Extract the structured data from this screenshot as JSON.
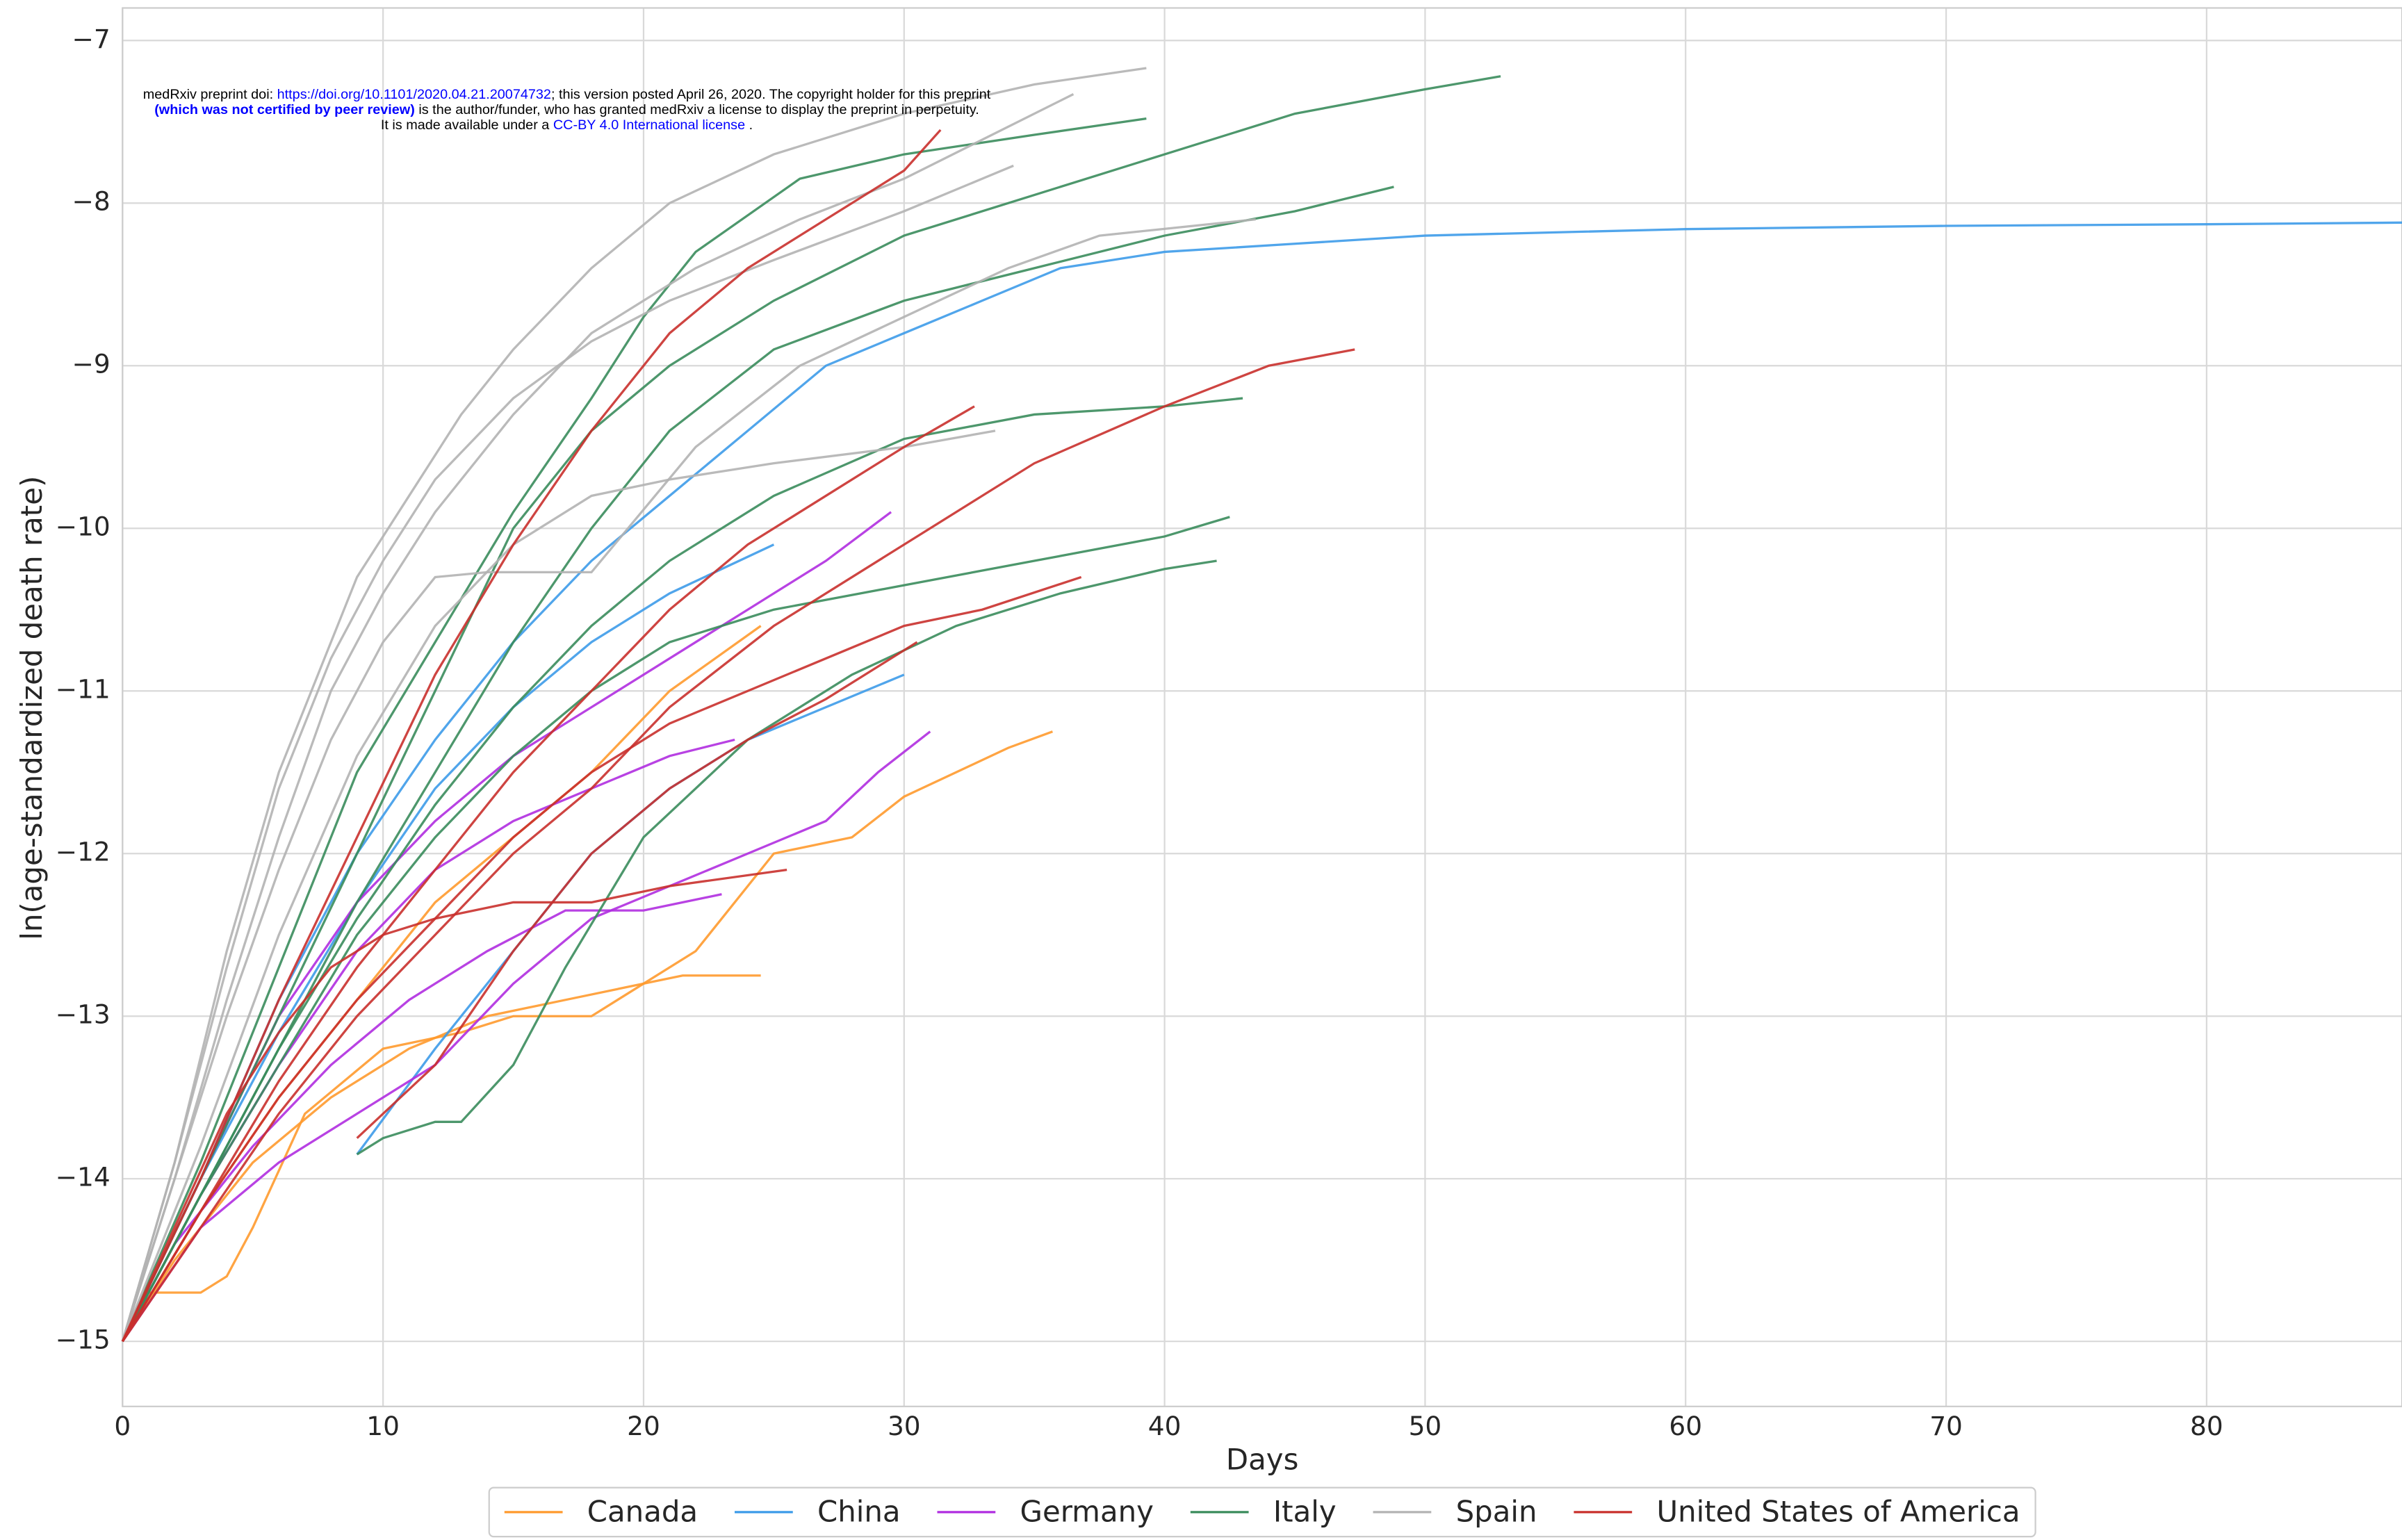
{
  "chart_data": {
    "type": "line",
    "xlabel": "Days",
    "ylabel": "ln(age-standardized death rate)",
    "xlim": [
      0,
      87.5
    ],
    "ylim": [
      -15.4,
      -6.8
    ],
    "xticks": [
      0,
      10,
      20,
      30,
      40,
      50,
      60,
      70,
      80
    ],
    "yticks": [
      {
        "value": -15,
        "label": "−15"
      },
      {
        "value": -14,
        "label": "−14"
      },
      {
        "value": -13,
        "label": "−13"
      },
      {
        "value": -12,
        "label": "−12"
      },
      {
        "value": -11,
        "label": "−11"
      },
      {
        "value": -10,
        "label": "−10"
      },
      {
        "value": -9,
        "label": "−9"
      },
      {
        "value": -8,
        "label": "−8"
      },
      {
        "value": -7,
        "label": "−7"
      }
    ],
    "grid": true,
    "legend": "bottom",
    "preprint_notice": [
      [
        {
          "text": "medRxiv preprint doi: "
        },
        {
          "text": "https://doi.org/10.1101/2020.04.21.20074732",
          "color": "#0000ff"
        },
        {
          "text": "; this version posted April 26, 2020. The copyright holder for this preprint"
        }
      ],
      [
        {
          "text": "(which was not certified by peer review)",
          "color": "#0000ff",
          "bold": true
        },
        {
          "text": " is the author/funder, who has granted medRxiv a license to display the preprint in perpetuity."
        }
      ],
      [
        {
          "text": "It is made available under a "
        },
        {
          "text": "CC-BY 4.0 International license",
          "color": "#0000ff"
        },
        {
          "text": " ."
        }
      ]
    ],
    "series": [
      {
        "name": "Canada",
        "color": "#ff9a2e",
        "curves": [
          {
            "x": [
              0,
              1,
              3,
              4,
              5,
              7,
              10,
              13,
              15,
              18,
              20,
              22,
              25,
              28,
              30,
              32,
              34,
              35.7
            ],
            "y": [
              -15,
              -14.7,
              -14.7,
              -14.6,
              -14.3,
              -13.6,
              -13.2,
              -13.1,
              -13.0,
              -13.0,
              -12.8,
              -12.6,
              -12.0,
              -11.9,
              -11.65,
              -11.5,
              -11.35,
              -11.25
            ]
          },
          {
            "x": [
              0,
              2,
              5,
              8,
              11,
              14,
              17,
              20,
              21.5,
              24.5
            ],
            "y": [
              -15,
              -14.5,
              -13.9,
              -13.5,
              -13.2,
              -13.0,
              -12.9,
              -12.8,
              -12.75,
              -12.75
            ]
          },
          {
            "x": [
              0,
              3,
              6,
              9,
              12,
              15,
              18,
              21,
              24.5
            ],
            "y": [
              -15,
              -14.2,
              -13.5,
              -12.9,
              -12.3,
              -11.9,
              -11.5,
              -11.0,
              -10.6
            ]
          }
        ]
      },
      {
        "name": "China",
        "color": "#3d9be9",
        "curves": [
          {
            "x": [
              0,
              3,
              6,
              9,
              12,
              15,
              18,
              21,
              24,
              27,
              30,
              33,
              36,
              40,
              45,
              50,
              60,
              70,
              80,
              87.5
            ],
            "y": [
              -15,
              -14.0,
              -12.9,
              -12.0,
              -11.3,
              -10.7,
              -10.2,
              -9.8,
              -9.4,
              -9.0,
              -8.8,
              -8.6,
              -8.4,
              -8.3,
              -8.25,
              -8.2,
              -8.16,
              -8.14,
              -8.13,
              -8.12
            ]
          },
          {
            "x": [
              9,
              12,
              15,
              18,
              21,
              24,
              27,
              30
            ],
            "y": [
              -13.85,
              -13.2,
              -12.6,
              -12.0,
              -11.6,
              -11.3,
              -11.1,
              -10.9
            ]
          },
          {
            "x": [
              0,
              3,
              6,
              9,
              12,
              15,
              18,
              21,
              25
            ],
            "y": [
              -15,
              -14,
              -13.1,
              -12.3,
              -11.6,
              -11.1,
              -10.7,
              -10.4,
              -10.1
            ]
          }
        ]
      },
      {
        "name": "Germany",
        "color": "#b02ee0",
        "curves": [
          {
            "x": [
              0,
              3,
              6,
              9,
              12,
              15,
              18,
              21,
              24,
              27,
              29,
              31
            ],
            "y": [
              -15,
              -14.3,
              -13.9,
              -13.6,
              -13.3,
              -12.8,
              -12.4,
              -12.2,
              -12.0,
              -11.8,
              -11.5,
              -11.25
            ]
          },
          {
            "x": [
              0,
              2,
              5,
              8,
              11,
              14,
              17,
              20,
              23
            ],
            "y": [
              -15,
              -14.4,
              -13.8,
              -13.3,
              -12.9,
              -12.6,
              -12.35,
              -12.35,
              -12.25
            ]
          },
          {
            "x": [
              0,
              3,
              6,
              9,
              12,
              15,
              18,
              21,
              24,
              27,
              29.5
            ],
            "y": [
              -15,
              -14.0,
              -13.0,
              -12.3,
              -11.8,
              -11.4,
              -11.1,
              -10.8,
              -10.5,
              -10.2,
              -9.9
            ]
          },
          {
            "x": [
              0,
              3,
              6,
              9,
              12,
              15,
              18,
              21,
              23.5
            ],
            "y": [
              -15,
              -14.1,
              -13.3,
              -12.6,
              -12.1,
              -11.8,
              -11.6,
              -11.4,
              -11.3
            ]
          }
        ]
      },
      {
        "name": "Italy",
        "color": "#3a8c5c",
        "curves": [
          {
            "x": [
              0,
              3,
              6,
              9,
              12,
              15,
              18,
              21,
              25,
              30,
              35,
              40,
              45,
              50,
              52.9
            ],
            "y": [
              -15,
              -14,
              -13,
              -12,
              -11,
              -10,
              -9.4,
              -9.0,
              -8.6,
              -8.2,
              -7.95,
              -7.7,
              -7.45,
              -7.3,
              -7.22
            ]
          },
          {
            "x": [
              9,
              10,
              12,
              13,
              15,
              17,
              20,
              24,
              28,
              32,
              36,
              40,
              42
            ],
            "y": [
              -13.85,
              -13.75,
              -13.65,
              -13.65,
              -13.3,
              -12.7,
              -11.9,
              -11.3,
              -10.9,
              -10.6,
              -10.4,
              -10.25,
              -10.2
            ]
          },
          {
            "x": [
              0,
              3,
              6,
              9,
              12,
              15,
              18,
              21,
              25,
              30,
              35,
              40,
              45,
              48.8
            ],
            "y": [
              -15,
              -14.1,
              -13.2,
              -12.3,
              -11.5,
              -10.7,
              -10.0,
              -9.4,
              -8.9,
              -8.6,
              -8.4,
              -8.2,
              -8.05,
              -7.9
            ]
          },
          {
            "x": [
              0,
              3,
              6,
              9,
              12,
              15,
              18,
              21,
              25,
              30,
              35,
              40,
              43
            ],
            "y": [
              -15,
              -14.1,
              -13.2,
              -12.4,
              -11.7,
              -11.1,
              -10.6,
              -10.2,
              -9.8,
              -9.45,
              -9.3,
              -9.25,
              -9.2
            ]
          },
          {
            "x": [
              0,
              3,
              6,
              9,
              12,
              15,
              18,
              21,
              25,
              30,
              35,
              40,
              42.5
            ],
            "y": [
              -15,
              -14.1,
              -13.3,
              -12.5,
              -11.9,
              -11.4,
              -11.0,
              -10.7,
              -10.5,
              -10.35,
              -10.2,
              -10.05,
              -9.93
            ]
          },
          {
            "x": [
              0,
              3,
              6,
              9,
              12,
              15,
              18,
              20,
              22,
              26,
              30,
              35,
              39.3
            ],
            "y": [
              -15,
              -13.9,
              -12.7,
              -11.5,
              -10.7,
              -9.9,
              -9.2,
              -8.7,
              -8.3,
              -7.85,
              -7.7,
              -7.58,
              -7.48
            ]
          }
        ]
      },
      {
        "name": "Spain",
        "color": "#b3b3b3",
        "curves": [
          {
            "x": [
              0,
              2,
              4,
              6,
              8,
              9,
              11,
              13,
              15,
              18,
              21,
              25,
              30,
              35,
              39.3
            ],
            "y": [
              -15,
              -13.9,
              -12.6,
              -11.5,
              -10.7,
              -10.3,
              -9.8,
              -9.3,
              -8.9,
              -8.4,
              -8.0,
              -7.7,
              -7.45,
              -7.27,
              -7.17
            ]
          },
          {
            "x": [
              0,
              2,
              4,
              6,
              8,
              10,
              12,
              15,
              18,
              22,
              26,
              30,
              36.5
            ],
            "y": [
              -15,
              -14,
              -12.9,
              -11.9,
              -11.0,
              -10.4,
              -9.9,
              -9.3,
              -8.8,
              -8.4,
              -8.1,
              -7.85,
              -7.33
            ]
          },
          {
            "x": [
              0,
              2,
              4,
              6,
              8,
              10,
              12,
              14,
              18,
              22,
              26,
              30,
              34,
              37.5,
              43.5
            ],
            "y": [
              -15,
              -14,
              -13,
              -12.1,
              -11.3,
              -10.7,
              -10.3,
              -10.27,
              -10.27,
              -9.5,
              -9.0,
              -8.7,
              -8.4,
              -8.2,
              -8.1
            ]
          },
          {
            "x": [
              0,
              3,
              6,
              9,
              12,
              15,
              18,
              21,
              25,
              30,
              33.5
            ],
            "y": [
              -15,
              -13.8,
              -12.5,
              -11.4,
              -10.6,
              -10.1,
              -9.8,
              -9.7,
              -9.6,
              -9.5,
              -9.4
            ]
          },
          {
            "x": [
              0,
              2,
              4,
              6,
              8,
              10,
              12,
              15,
              18,
              21,
              25,
              30,
              34.2
            ],
            "y": [
              -15,
              -13.9,
              -12.7,
              -11.6,
              -10.8,
              -10.2,
              -9.7,
              -9.2,
              -8.85,
              -8.6,
              -8.35,
              -8.05,
              -7.77
            ]
          }
        ]
      },
      {
        "name": "United States of America",
        "color": "#c9302c",
        "curves": [
          {
            "x": [
              0,
              3,
              6,
              9,
              12,
              15,
              18,
              21,
              24,
              27,
              30,
              31.4
            ],
            "y": [
              -15,
              -14,
              -12.9,
              -11.9,
              -10.9,
              -10.1,
              -9.4,
              -8.8,
              -8.4,
              -8.1,
              -7.8,
              -7.55
            ]
          },
          {
            "x": [
              0,
              3,
              6,
              9,
              12,
              15,
              18,
              21,
              25,
              30,
              35,
              40,
              44,
              47.3
            ],
            "y": [
              -15,
              -14.3,
              -13.6,
              -13,
              -12.5,
              -12,
              -11.6,
              -11.1,
              -10.6,
              -10.1,
              -9.6,
              -9.25,
              -9.0,
              -8.9
            ]
          },
          {
            "x": [
              0,
              3,
              6,
              9,
              12,
              15,
              18,
              21,
              24,
              27,
              30,
              33,
              36.8
            ],
            "y": [
              -15,
              -14.2,
              -13.5,
              -12.9,
              -12.4,
              -11.9,
              -11.5,
              -11.2,
              -11.0,
              -10.8,
              -10.6,
              -10.5,
              -10.3
            ]
          },
          {
            "x": [
              0,
              3,
              6,
              9,
              12,
              15,
              18,
              21,
              24,
              27,
              30,
              32.7
            ],
            "y": [
              -15,
              -14.2,
              -13.4,
              -12.7,
              -12.1,
              -11.5,
              -11.0,
              -10.5,
              -10.1,
              -9.8,
              -9.5,
              -9.25
            ]
          },
          {
            "x": [
              0,
              2,
              4,
              6,
              8,
              10,
              12,
              15,
              18,
              21,
              25.5
            ],
            "y": [
              -15,
              -14.3,
              -13.6,
              -13.1,
              -12.7,
              -12.5,
              -12.4,
              -12.3,
              -12.3,
              -12.2,
              -12.1
            ]
          },
          {
            "x": [
              9,
              12,
              15,
              18,
              21,
              24,
              27,
              30.5
            ],
            "y": [
              -13.75,
              -13.3,
              -12.6,
              -12.0,
              -11.6,
              -11.3,
              -11.05,
              -10.7
            ]
          }
        ]
      }
    ]
  }
}
